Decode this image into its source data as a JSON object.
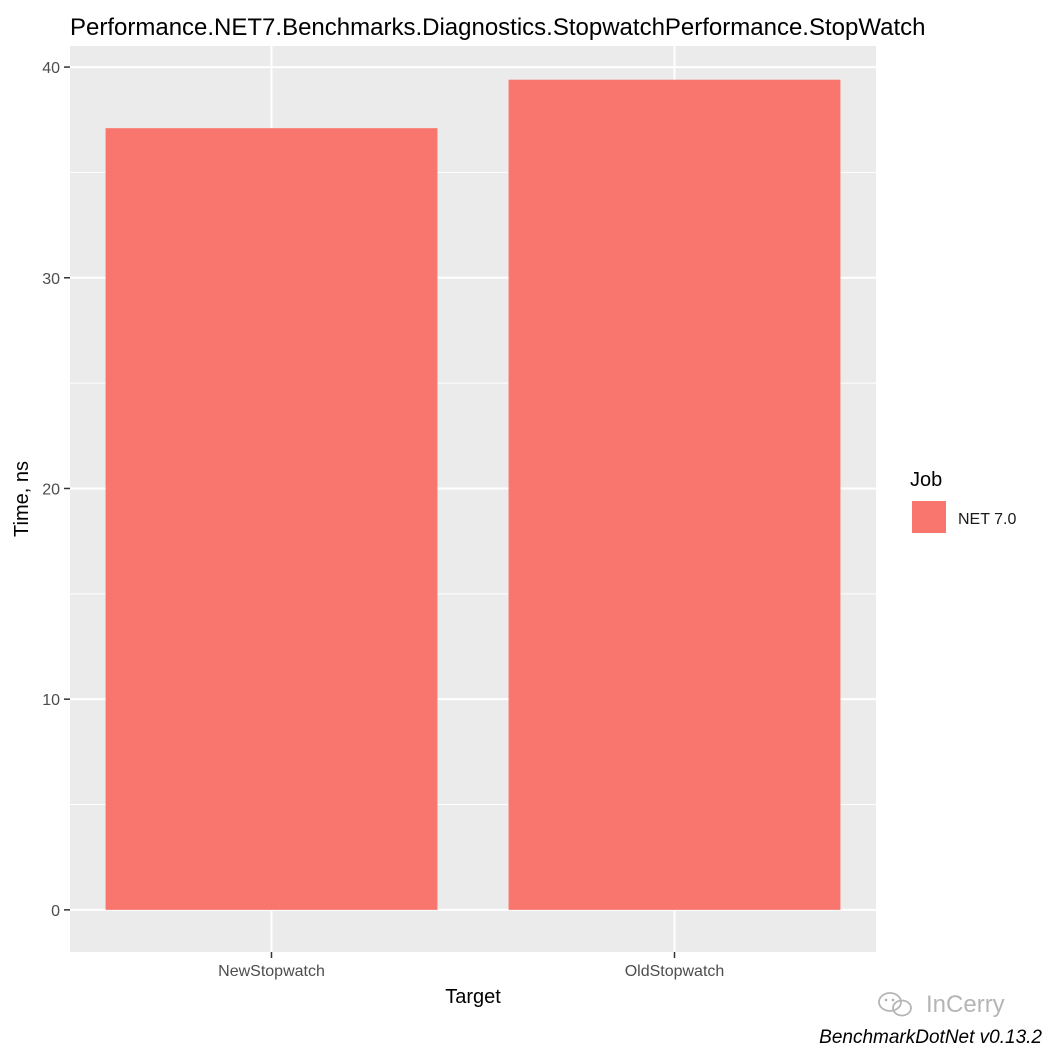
{
  "chart_data": {
    "type": "bar",
    "title": "Performance.NET7.Benchmarks.Diagnostics.StopwatchPerformance.StopWatch",
    "xlabel": "Target",
    "ylabel": "Time, ns",
    "categories": [
      "NewStopwatch",
      "OldStopwatch"
    ],
    "series": [
      {
        "name": "NET 7.0",
        "values": [
          37.1,
          39.4
        ]
      }
    ],
    "ylim": [
      -2,
      41
    ],
    "yticks": [
      0,
      10,
      20,
      30,
      40
    ],
    "grid": true,
    "legend": {
      "title": "Job",
      "position": "right"
    },
    "caption": "BenchmarkDotNet v0.13.2",
    "colors": {
      "bar": "#F8766D",
      "panel": "#EBEBEB",
      "grid": "#FFFFFF"
    }
  },
  "watermark": "InCerry"
}
